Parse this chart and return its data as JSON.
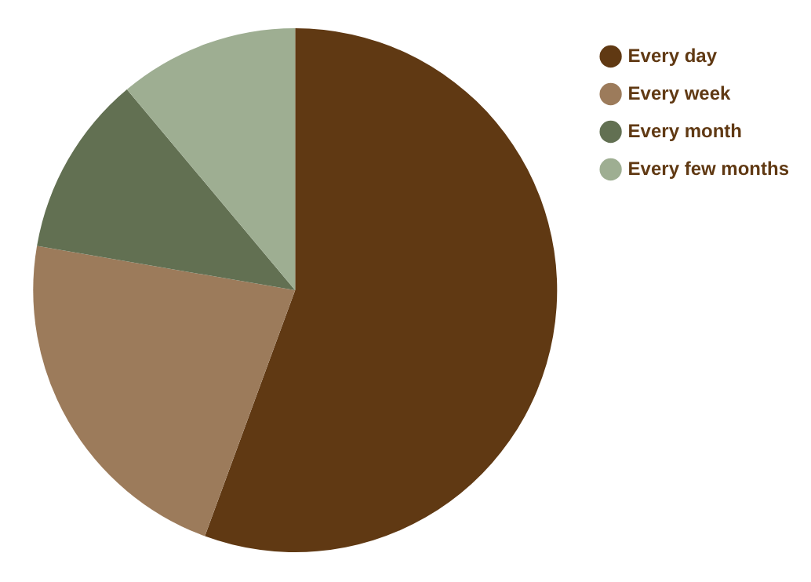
{
  "chart_data": {
    "type": "pie",
    "categories": [
      "Every day",
      "Every week",
      "Every month",
      "Every few months"
    ],
    "values": [
      55.6,
      22.1,
      11.2,
      11.1
    ],
    "colors": [
      "#603913",
      "#9c7b5b",
      "#627052",
      "#9eae92"
    ],
    "legend": "top right"
  }
}
